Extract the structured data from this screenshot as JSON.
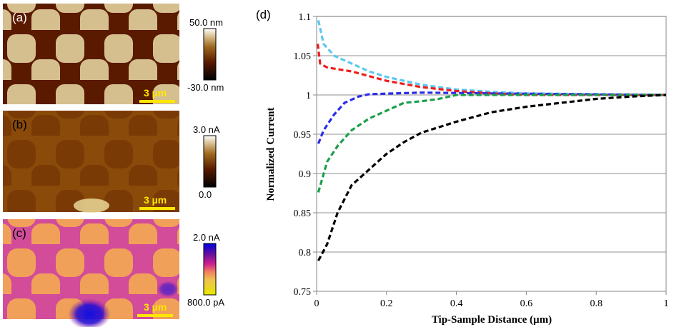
{
  "panels": [
    {
      "label": "(a)",
      "scale_bar": "3 µm",
      "colorbar_max": "50.0 nm",
      "colorbar_min": "-30.0 nm",
      "colors": [
        "#000000",
        "#5a1a00",
        "#a06a20",
        "#d8c090",
        "#ffffff"
      ]
    },
    {
      "label": "(b)",
      "scale_bar": "3 µm",
      "colorbar_max": "3.0 nA",
      "colorbar_min": "0.0",
      "colors": [
        "#000000",
        "#5a1a00",
        "#a06a20",
        "#d8c090",
        "#ffffff"
      ]
    },
    {
      "label": "(c)",
      "scale_bar": "3 µm",
      "colorbar_max": "2.0 nA",
      "colorbar_min": "800.0 pA",
      "colors": [
        "#e8e800",
        "#f0a050",
        "#d02090",
        "#6010a0",
        "#0000e0"
      ]
    }
  ],
  "scale_bar_color": "#ffe800",
  "chart_data": {
    "type": "line",
    "panel_label": "(d)",
    "xlabel": "Tip-Sample Distance (µm)",
    "ylabel": "Normalized Current",
    "xlim": [
      0,
      1
    ],
    "ylim": [
      0.75,
      1.1
    ],
    "xticks": [
      "0",
      "0.2",
      "0.4",
      "0.6",
      "0.8",
      "1"
    ],
    "yticks": [
      "0.75",
      "0.8",
      "0.85",
      "0.9",
      "0.95",
      "1",
      "1.05",
      "1.1"
    ],
    "grid": "horizontal",
    "line_style": "dashed",
    "series": [
      {
        "color": "#5bc8f0",
        "x": [
          0.005,
          0.02,
          0.05,
          0.1,
          0.15,
          0.2,
          0.25,
          0.3,
          0.35,
          0.4,
          0.5,
          0.6,
          0.8,
          1
        ],
        "y": [
          1.095,
          1.065,
          1.05,
          1.04,
          1.03,
          1.023,
          1.018,
          1.013,
          1.01,
          1.007,
          1.004,
          1.002,
          1.001,
          1.0
        ]
      },
      {
        "color": "#ee1c1c",
        "x": [
          0.003,
          0.01,
          0.03,
          0.1,
          0.15,
          0.2,
          0.3,
          0.4,
          0.5,
          0.6,
          1
        ],
        "y": [
          1.065,
          1.04,
          1.035,
          1.03,
          1.024,
          1.018,
          1.01,
          1.005,
          1.002,
          1.0,
          1.0
        ]
      },
      {
        "color": "#2b2be8",
        "x": [
          0.005,
          0.02,
          0.05,
          0.08,
          0.12,
          0.15,
          0.3,
          0.5,
          1
        ],
        "y": [
          0.938,
          0.955,
          0.975,
          0.99,
          0.998,
          1.001,
          1.003,
          1.002,
          1.0
        ]
      },
      {
        "color": "#1aa04a",
        "x": [
          0.005,
          0.03,
          0.06,
          0.1,
          0.15,
          0.2,
          0.25,
          0.3,
          0.35,
          0.4,
          1
        ],
        "y": [
          0.876,
          0.915,
          0.935,
          0.955,
          0.97,
          0.98,
          0.99,
          0.992,
          0.995,
          1.0,
          1.0
        ]
      },
      {
        "color": "#000000",
        "x": [
          0.005,
          0.03,
          0.06,
          0.1,
          0.15,
          0.2,
          0.25,
          0.3,
          0.4,
          0.5,
          0.6,
          0.7,
          0.8,
          0.9,
          1
        ],
        "y": [
          0.789,
          0.81,
          0.85,
          0.885,
          0.905,
          0.925,
          0.94,
          0.952,
          0.966,
          0.978,
          0.985,
          0.99,
          0.995,
          0.998,
          1.0
        ]
      }
    ]
  }
}
